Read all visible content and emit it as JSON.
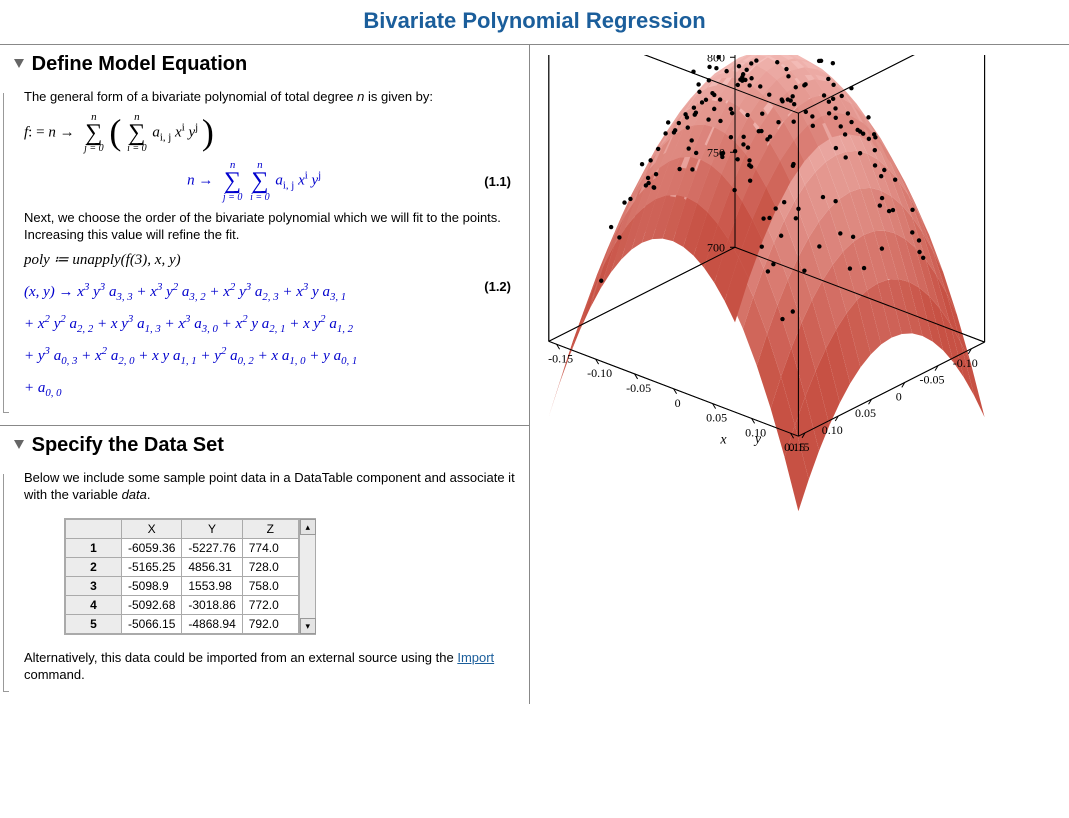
{
  "page_title": "Bivariate Polynomial Regression",
  "sections": {
    "define": {
      "heading": "Define Model Equation",
      "intro_pre": "The general form of a bivariate polynomial of total degree ",
      "intro_var": "n",
      "intro_post": " is given by:",
      "eq_label_1": "(1.1)",
      "para2": "Next, we choose the order of the bivariate polynomial which we will fit to the points. Increasing this value will refine the fit.",
      "poly_assign": "poly ≔ unapply(f(3), x, y)",
      "eq_label_2": "(1.2)"
    },
    "data": {
      "heading": "Specify the Data Set",
      "intro_pre": "Below we include some sample point data in a DataTable component and associate it with the variable ",
      "intro_var": "data",
      "intro_post": ".",
      "columns": [
        "X",
        "Y",
        "Z"
      ],
      "rows": [
        [
          "1",
          "-6059.36",
          "-5227.76",
          "774.0"
        ],
        [
          "2",
          "-5165.25",
          "4856.31",
          "728.0"
        ],
        [
          "3",
          "-5098.9",
          "1553.98",
          "758.0"
        ],
        [
          "4",
          "-5092.68",
          "-3018.86",
          "772.0"
        ],
        [
          "5",
          "-5066.15",
          "-4868.94",
          "792.0"
        ]
      ],
      "outro_pre": "Alternatively, this data could be imported from an external source using the ",
      "outro_link": "Import",
      "outro_post": " command."
    }
  },
  "plot3d": {
    "axes": {
      "x": {
        "label": "x",
        "ticks": [
          "0.15",
          "0.10",
          "0.05",
          "0",
          "-0.05",
          "-0.10",
          "-0.15"
        ]
      },
      "y": {
        "label": "y",
        "ticks": [
          "-0.10",
          "-0.05",
          "0",
          "0.05",
          "0.10",
          "0.15"
        ]
      },
      "z": {
        "label": "",
        "ticks": [
          "700",
          "750",
          "800",
          "850"
        ]
      }
    },
    "surface_color_light": "#f4b8b3",
    "surface_color_dark": "#c03a2b",
    "point_color": "#000000",
    "box_color": "#000000",
    "background": "#ffffff",
    "tick_fontsize": 12,
    "n_scatter_points": 180,
    "z_peak": 850,
    "z_corner": 700
  },
  "colors": {
    "title": "#1b5e9b",
    "math_output": "#0000cd",
    "border": "#888888",
    "link": "#1b5e9b"
  }
}
